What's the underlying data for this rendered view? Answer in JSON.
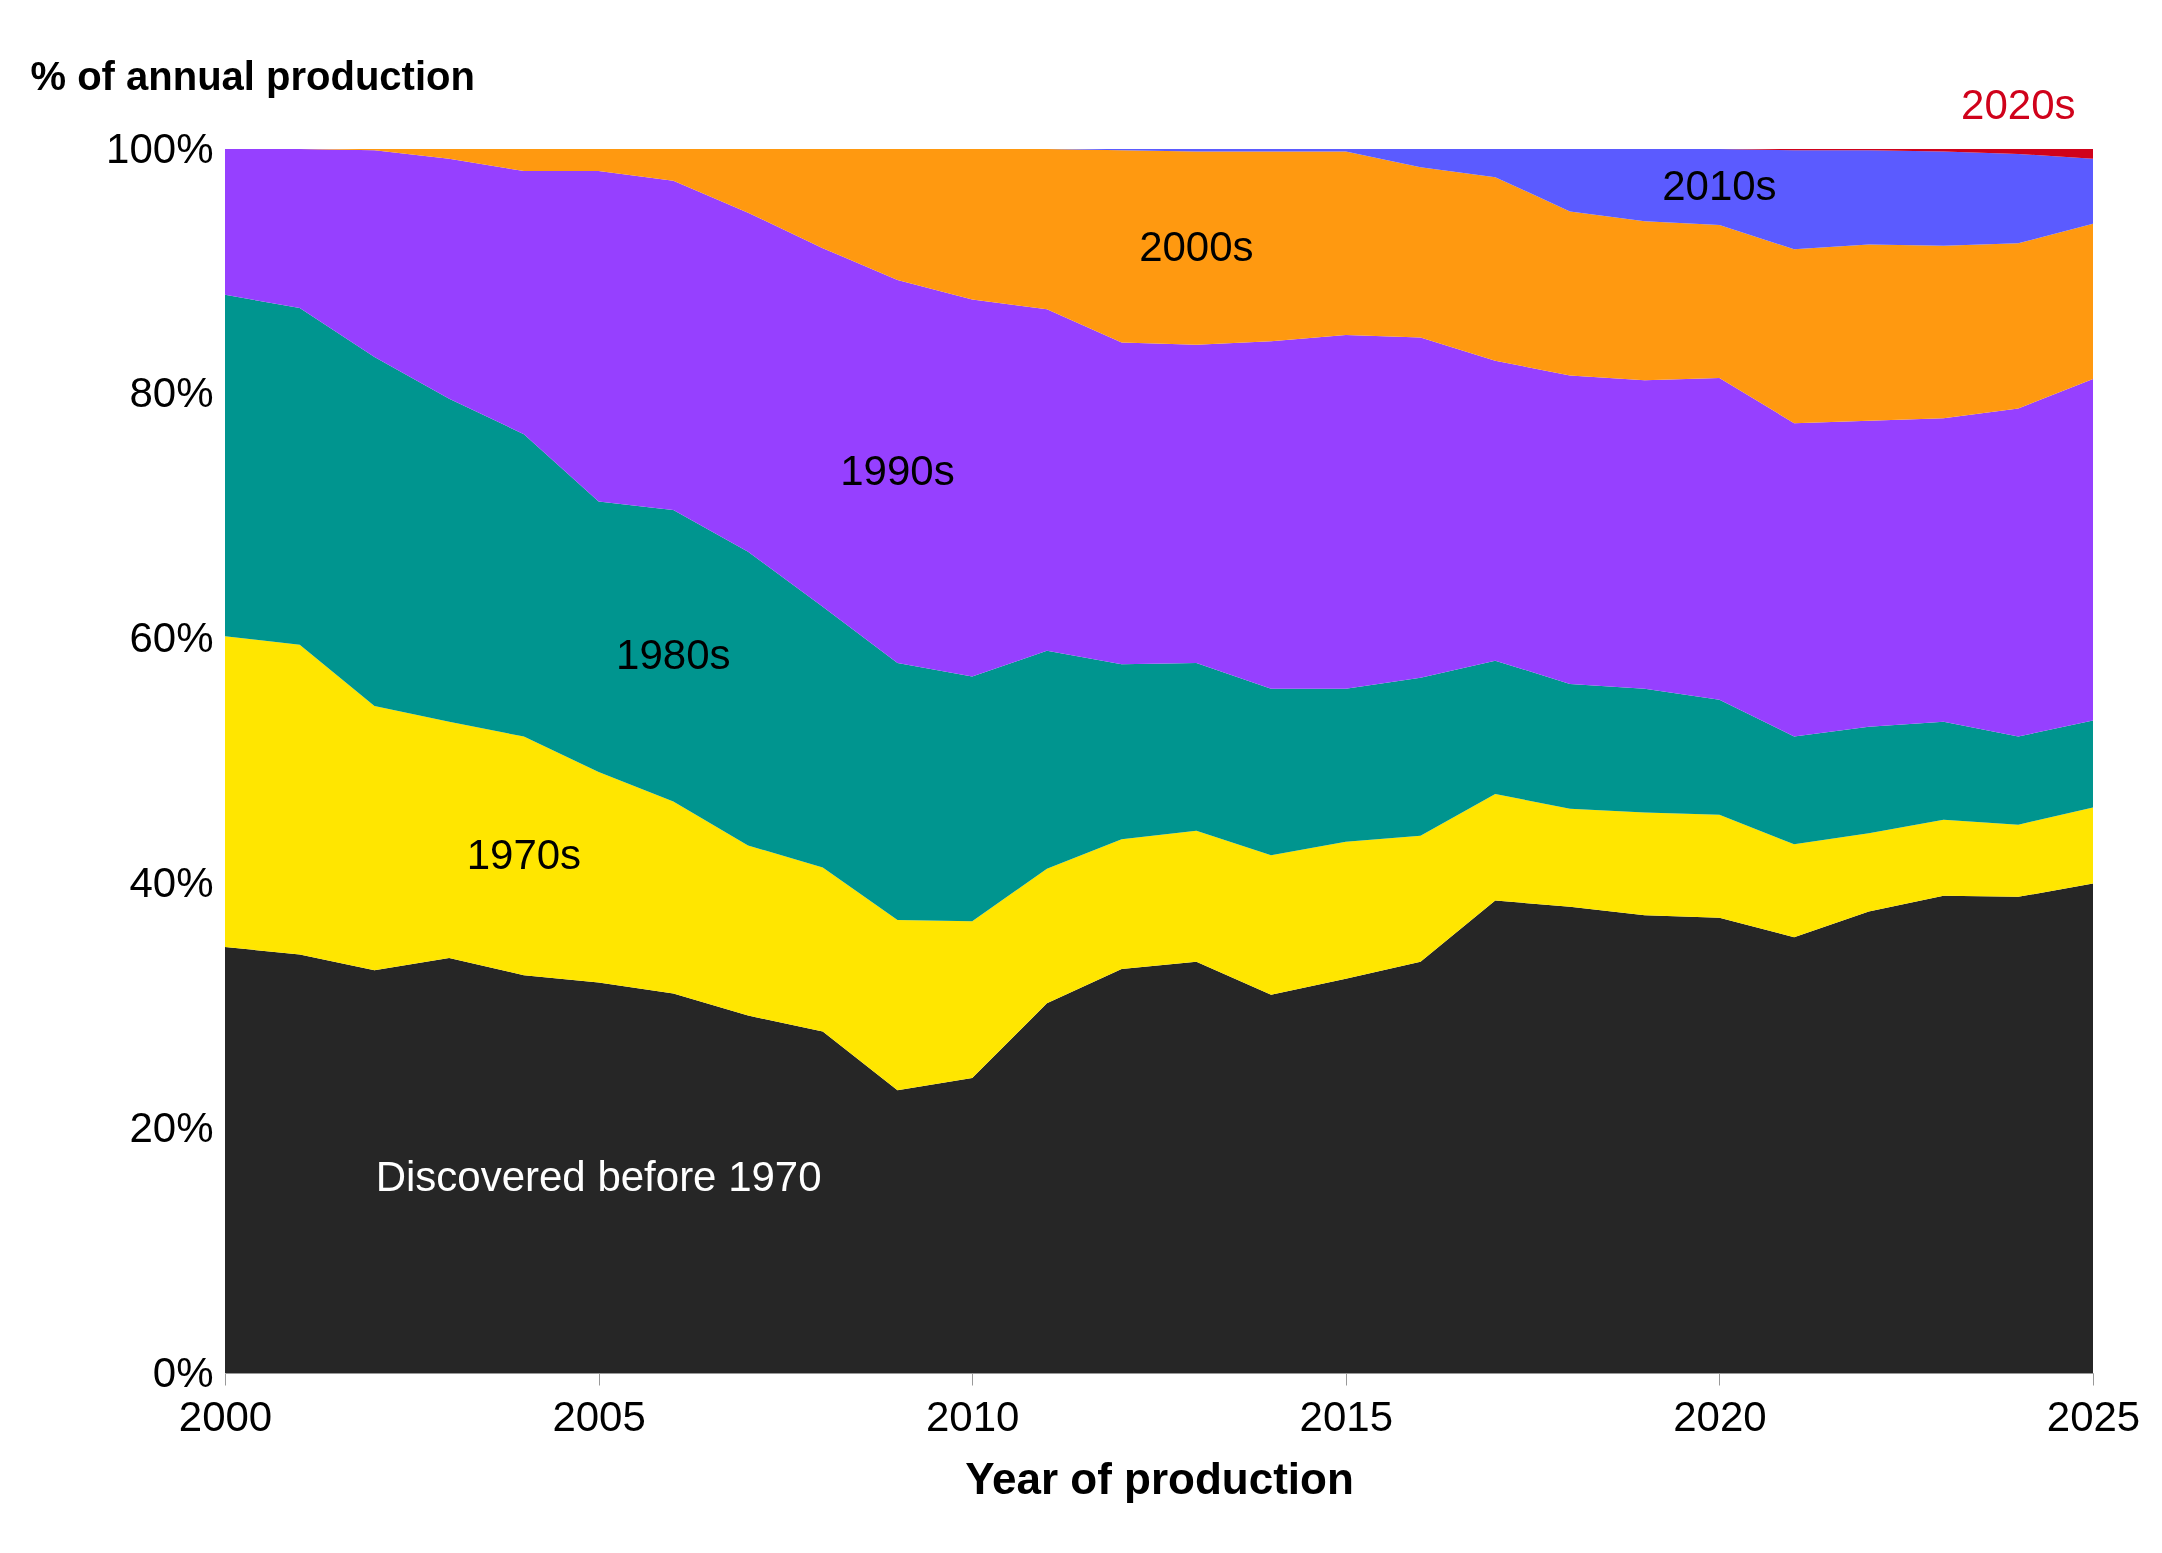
{
  "chart_data": {
    "type": "area",
    "stacked": true,
    "ylabel": "% of annual production",
    "xlabel": "Year of production",
    "x": [
      2000,
      2001,
      2002,
      2003,
      2004,
      2005,
      2006,
      2007,
      2008,
      2009,
      2010,
      2011,
      2012,
      2013,
      2014,
      2015,
      2016,
      2017,
      2018,
      2019,
      2020,
      2021,
      2022,
      2023,
      2024,
      2025
    ],
    "xlim": [
      2000,
      2025
    ],
    "xticks": [
      2000,
      2005,
      2010,
      2015,
      2020,
      2025
    ],
    "ylim": [
      0,
      100
    ],
    "yticks": [
      {
        "value": 0,
        "label": "0%"
      },
      {
        "value": 20,
        "label": "20%"
      },
      {
        "value": 40,
        "label": "40%"
      },
      {
        "value": 60,
        "label": "60%"
      },
      {
        "value": 80,
        "label": "80%"
      },
      {
        "value": 100,
        "label": "100%"
      }
    ],
    "grid": false,
    "legend": false,
    "series": [
      {
        "name": "Discovered before 1970",
        "color": "#262626",
        "values": [
          34.8,
          34.2,
          32.9,
          33.9,
          32.5,
          31.9,
          31.0,
          29.2,
          27.9,
          23.1,
          24.1,
          30.2,
          33.0,
          33.6,
          30.9,
          32.2,
          33.6,
          38.6,
          38.1,
          37.4,
          37.2,
          35.6,
          37.7,
          39.0,
          38.9,
          40.0
        ]
      },
      {
        "name": "1970s",
        "color": "#ffe600",
        "values": [
          25.4,
          25.3,
          21.6,
          19.3,
          19.5,
          17.2,
          15.7,
          13.9,
          13.4,
          13.9,
          12.8,
          11.0,
          10.6,
          10.7,
          11.4,
          11.2,
          10.3,
          8.7,
          8.0,
          8.4,
          8.4,
          7.6,
          6.4,
          6.2,
          5.9,
          6.2
        ]
      },
      {
        "name": "1980s",
        "color": "#00958f",
        "values": [
          27.9,
          27.5,
          28.5,
          26.4,
          24.7,
          22.1,
          23.8,
          24.0,
          21.3,
          21.0,
          20.0,
          17.8,
          14.3,
          13.7,
          13.6,
          12.5,
          12.9,
          10.9,
          10.2,
          10.1,
          9.4,
          8.8,
          8.7,
          8.0,
          7.2,
          7.1
        ]
      },
      {
        "name": "1990s",
        "color": "#9640ff",
        "values": [
          11.9,
          13.0,
          16.9,
          19.6,
          21.5,
          27.0,
          26.9,
          27.7,
          29.3,
          31.3,
          30.8,
          27.9,
          26.3,
          26.0,
          28.4,
          28.9,
          27.8,
          24.5,
          25.2,
          25.2,
          26.3,
          25.6,
          25.0,
          24.8,
          26.8,
          27.9
        ]
      },
      {
        "name": "2000s",
        "color": "#ff9910",
        "values": [
          0,
          0,
          0.1,
          0.8,
          1.8,
          1.8,
          2.6,
          5.2,
          8.1,
          10.7,
          12.3,
          13.1,
          15.7,
          15.8,
          15.5,
          15.0,
          13.9,
          15.0,
          13.4,
          13.0,
          12.5,
          14.2,
          14.4,
          14.1,
          13.5,
          12.7
        ]
      },
      {
        "name": "2010s",
        "color": "#5b5bff",
        "values": [
          0,
          0,
          0,
          0,
          0,
          0,
          0,
          0,
          0,
          0,
          0,
          0,
          0.1,
          0.2,
          0.2,
          0.2,
          1.5,
          2.3,
          5.1,
          5.9,
          6.2,
          8.1,
          7.7,
          7.7,
          7.3,
          5.3
        ]
      },
      {
        "name": "2020s",
        "color": "#d0021b",
        "values": [
          0,
          0,
          0,
          0,
          0,
          0,
          0,
          0,
          0,
          0,
          0,
          0,
          0,
          0,
          0,
          0,
          0,
          0,
          0,
          0,
          0,
          0.1,
          0.1,
          0.2,
          0.4,
          0.8
        ]
      }
    ]
  }
}
